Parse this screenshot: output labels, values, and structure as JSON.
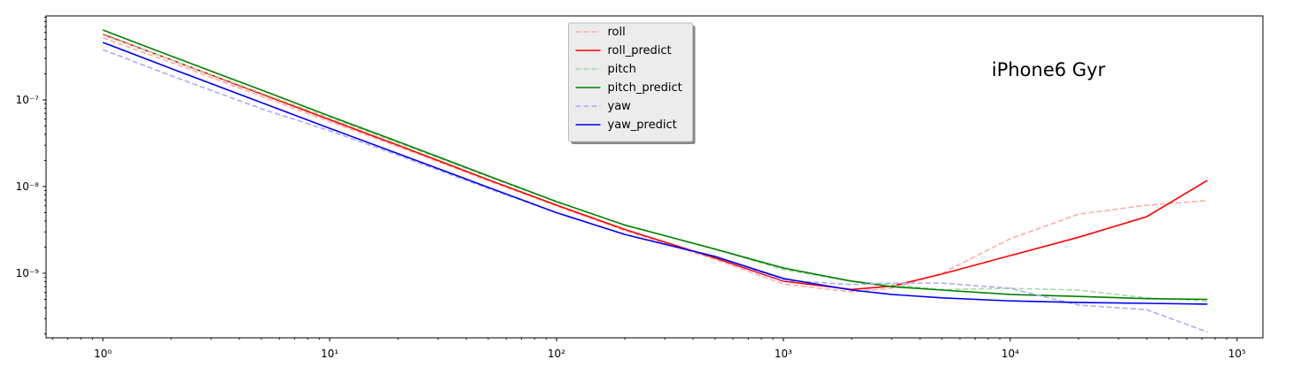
{
  "chart_data": {
    "type": "line",
    "annotation": "iPhone6 Gyr",
    "xscale": "log",
    "yscale": "log",
    "xlim": [
      0.562,
      130000
    ],
    "ylim": [
      1.8e-10,
      9.3e-07
    ],
    "xticks": [
      {
        "value": 1,
        "label": "10⁰"
      },
      {
        "value": 10,
        "label": "10¹"
      },
      {
        "value": 100,
        "label": "10²"
      },
      {
        "value": 1000,
        "label": "10³"
      },
      {
        "value": 10000,
        "label": "10⁴"
      },
      {
        "value": 100000,
        "label": "10⁵"
      }
    ],
    "yticks": [
      {
        "value": 1e-09,
        "label": "10⁻⁹"
      },
      {
        "value": 1e-08,
        "label": "10⁻⁸"
      },
      {
        "value": 1e-07,
        "label": "10⁻⁷"
      }
    ],
    "legend": "upper center",
    "x": [
      1,
      2,
      5,
      10,
      20,
      50,
      100,
      200,
      500,
      1000,
      2000,
      3000,
      5000,
      10000,
      20000,
      40000,
      74000
    ],
    "series": [
      {
        "name": "roll",
        "color": "#ffaaaa",
        "linestyle": "dashed",
        "values": [
          5.2e-07,
          2.7e-07,
          1.1e-07,
          5.6e-08,
          2.9e-08,
          1.17e-08,
          6e-09,
          3.1e-09,
          1.45e-09,
          7.5e-10,
          6.1e-10,
          6.7e-10,
          1e-09,
          2.5e-09,
          4.8e-09,
          6.1e-09,
          6.9e-09
        ]
      },
      {
        "name": "roll_predict",
        "color": "#ff0000",
        "linestyle": "solid",
        "values": [
          5.7e-07,
          2.9e-07,
          1.17e-07,
          5.9e-08,
          3e-08,
          1.2e-08,
          6.1e-09,
          3.2e-09,
          1.5e-09,
          8.1e-10,
          6.5e-10,
          7.1e-10,
          9.8e-10,
          1.6e-09,
          2.6e-09,
          4.5e-09,
          1.18e-08
        ]
      },
      {
        "name": "pitch",
        "color": "#a8d8a8",
        "linestyle": "dashed",
        "values": [
          5.6e-07,
          2.9e-07,
          1.2e-07,
          6.2e-08,
          3.2e-08,
          1.3e-08,
          6.7e-09,
          3.6e-09,
          1.9e-09,
          1.1e-09,
          8.1e-10,
          7.4e-10,
          6.5e-10,
          6.7e-10,
          6.4e-10,
          5.2e-10,
          4.8e-10
        ]
      },
      {
        "name": "pitch_predict",
        "color": "#008000",
        "linestyle": "solid",
        "values": [
          6.4e-07,
          3.2e-07,
          1.3e-07,
          6.5e-08,
          3.3e-08,
          1.33e-08,
          6.7e-09,
          3.6e-09,
          1.9e-09,
          1.15e-09,
          8.1e-10,
          7e-10,
          6.4e-10,
          5.7e-10,
          5.4e-10,
          5.1e-10,
          5e-10
        ]
      },
      {
        "name": "yaw",
        "color": "#aaaaff",
        "linestyle": "dashed",
        "values": [
          3.8e-07,
          1.9e-07,
          7.9e-08,
          4.4e-08,
          2.3e-08,
          9.5e-09,
          5e-09,
          2.8e-09,
          1.56e-09,
          8.3e-10,
          7.4e-10,
          7.7e-10,
          7.7e-10,
          6.7e-10,
          4.3e-10,
          3.8e-10,
          2.1e-10
        ]
      },
      {
        "name": "yaw_predict",
        "color": "#0000ff",
        "linestyle": "solid",
        "values": [
          4.6e-07,
          2.3e-07,
          9.3e-08,
          4.7e-08,
          2.4e-08,
          9.8e-09,
          5e-09,
          2.8e-09,
          1.56e-09,
          8.7e-10,
          6.4e-10,
          5.7e-10,
          5.2e-10,
          4.8e-10,
          4.6e-10,
          4.5e-10,
          4.4e-10
        ]
      }
    ]
  }
}
